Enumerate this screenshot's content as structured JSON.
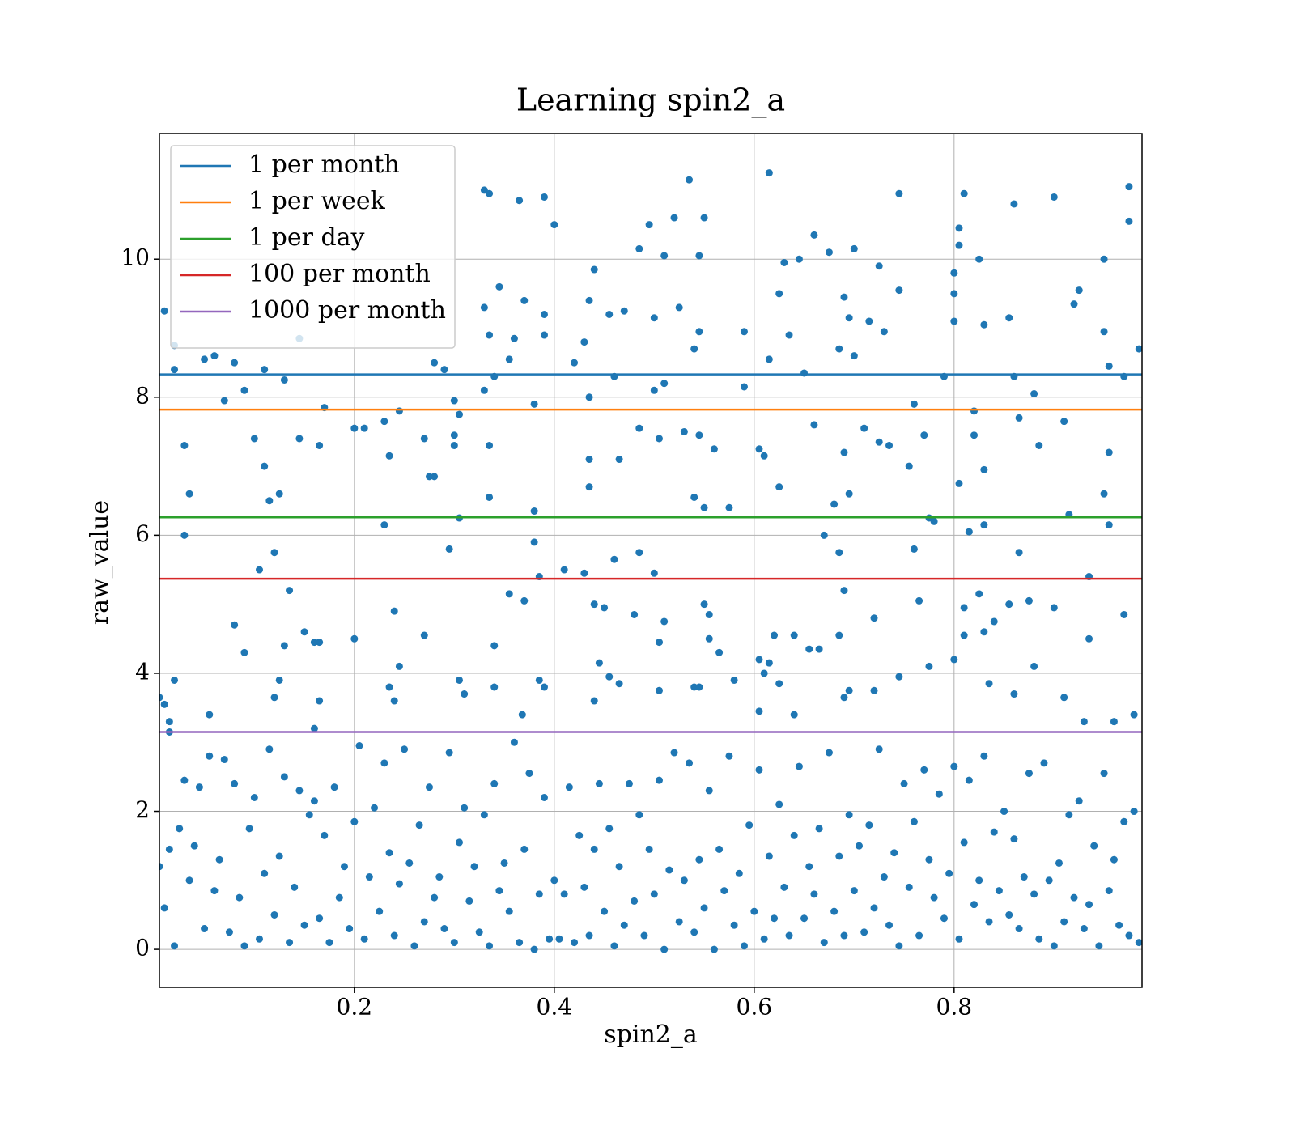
{
  "chart_data": {
    "type": "scatter",
    "title": "Learning spin2_a",
    "xlabel": "spin2_a",
    "ylabel": "raw_value",
    "color": "#1f77b4",
    "xlim": [
      0.005,
      0.988
    ],
    "ylim": [
      -0.55,
      11.82
    ],
    "xticks": [
      0.2,
      0.4,
      0.6,
      0.8
    ],
    "yticks": [
      0,
      2,
      4,
      6,
      8,
      10
    ],
    "grid": true,
    "legend": "upper left",
    "hlines": [
      {
        "name": "1 per month",
        "color": "#1f77b4",
        "value": 8.33
      },
      {
        "name": "1 per week",
        "color": "#ff7f0e",
        "value": 7.82
      },
      {
        "name": "1 per day",
        "color": "#2ca02c",
        "value": 6.26
      },
      {
        "name": "100 per month",
        "color": "#d62728",
        "value": 5.37
      },
      {
        "name": "1000 per month",
        "color": "#9467bd",
        "value": 3.15
      }
    ],
    "x": [
      0.01,
      0.02,
      0.03,
      0.035,
      0.03,
      0.07,
      0.09,
      0.1,
      0.11,
      0.115,
      0.12,
      0.105,
      0.125,
      0.13,
      0.145,
      0.145,
      0.165,
      0.17,
      0.2,
      0.21,
      0.23,
      0.235,
      0.245,
      0.23,
      0.27,
      0.275,
      0.28,
      0.3,
      0.3,
      0.295,
      0.305,
      0.33,
      0.335,
      0.345,
      0.33,
      0.335,
      0.34,
      0.335,
      0.335,
      0.365,
      0.39,
      0.4,
      0.37,
      0.39,
      0.39,
      0.38,
      0.38,
      0.38,
      0.385,
      0.42,
      0.43,
      0.435,
      0.44,
      0.435,
      0.435,
      0.435,
      0.41,
      0.43,
      0.455,
      0.47,
      0.46,
      0.465,
      0.485,
      0.495,
      0.51,
      0.52,
      0.535,
      0.545,
      0.55,
      0.5,
      0.525,
      0.54,
      0.545,
      0.5,
      0.51,
      0.485,
      0.505,
      0.53,
      0.545,
      0.56,
      0.55,
      0.54,
      0.575,
      0.485,
      0.5,
      0.46,
      0.615,
      0.59,
      0.59,
      0.63,
      0.645,
      0.66,
      0.675,
      0.625,
      0.615,
      0.635,
      0.65,
      0.69,
      0.685,
      0.7,
      0.695,
      0.7,
      0.715,
      0.725,
      0.745,
      0.745,
      0.73,
      0.605,
      0.61,
      0.625,
      0.66,
      0.69,
      0.71,
      0.725,
      0.735,
      0.755,
      0.68,
      0.695,
      0.67,
      0.685,
      0.76,
      0.77,
      0.775,
      0.78,
      0.79,
      0.8,
      0.8,
      0.805,
      0.805,
      0.81,
      0.8,
      0.825,
      0.83,
      0.82,
      0.82,
      0.83,
      0.805,
      0.815,
      0.83,
      0.86,
      0.855,
      0.86,
      0.865,
      0.88,
      0.9,
      0.92,
      0.925,
      0.91,
      0.885,
      0.915,
      0.95,
      0.95,
      0.955,
      0.975,
      0.975,
      0.97,
      0.985,
      0.955,
      0.95,
      0.955,
      0.935,
      0.865,
      0.76,
      0.05,
      0.06,
      0.08,
      0.02,
      0.11,
      0.28,
      0.29,
      0.3,
      0.305,
      0.33,
      0.36,
      0.355,
      0.08,
      0.09,
      0.135,
      0.13,
      0.15,
      0.16,
      0.165,
      0.2,
      0.24,
      0.245,
      0.235,
      0.24,
      0.27,
      0.305,
      0.31,
      0.34,
      0.34,
      0.355,
      0.37,
      0.385,
      0.39,
      0.368,
      0.44,
      0.45,
      0.445,
      0.455,
      0.465,
      0.44,
      0.48,
      0.505,
      0.51,
      0.505,
      0.55,
      0.555,
      0.555,
      0.565,
      0.54,
      0.545,
      0.58,
      0.605,
      0.61,
      0.615,
      0.62,
      0.625,
      0.64,
      0.655,
      0.665,
      0.64,
      0.605,
      0.69,
      0.685,
      0.69,
      0.695,
      0.72,
      0.72,
      0.745,
      0.765,
      0.775,
      0.8,
      0.81,
      0.81,
      0.825,
      0.83,
      0.84,
      0.835,
      0.855,
      0.86,
      0.875,
      0.88,
      0.9,
      0.91,
      0.935,
      0.93,
      0.97,
      0.96,
      0.98,
      0.01,
      0.015,
      0.02,
      0.055,
      0.12,
      0.125,
      0.165,
      0.005,
      0.015,
      0.16,
      0.005,
      0.01,
      0.015,
      0.02,
      0.025,
      0.03,
      0.035,
      0.04,
      0.045,
      0.05,
      0.055,
      0.06,
      0.065,
      0.07,
      0.075,
      0.08,
      0.085,
      0.09,
      0.095,
      0.1,
      0.105,
      0.11,
      0.115,
      0.12,
      0.125,
      0.13,
      0.135,
      0.14,
      0.145,
      0.15,
      0.155,
      0.16,
      0.165,
      0.17,
      0.175,
      0.18,
      0.185,
      0.19,
      0.195,
      0.2,
      0.205,
      0.21,
      0.215,
      0.22,
      0.225,
      0.23,
      0.235,
      0.24,
      0.245,
      0.25,
      0.255,
      0.26,
      0.265,
      0.27,
      0.275,
      0.28,
      0.285,
      0.29,
      0.295,
      0.3,
      0.305,
      0.31,
      0.315,
      0.32,
      0.325,
      0.33,
      0.335,
      0.34,
      0.345,
      0.35,
      0.355,
      0.36,
      0.365,
      0.37,
      0.375,
      0.38,
      0.385,
      0.39,
      0.395,
      0.4,
      0.405,
      0.41,
      0.415,
      0.42,
      0.425,
      0.43,
      0.435,
      0.44,
      0.445,
      0.45,
      0.455,
      0.46,
      0.465,
      0.47,
      0.475,
      0.48,
      0.485,
      0.49,
      0.495,
      0.5,
      0.505,
      0.51,
      0.515,
      0.52,
      0.525,
      0.53,
      0.535,
      0.54,
      0.545,
      0.55,
      0.555,
      0.56,
      0.565,
      0.57,
      0.575,
      0.58,
      0.585,
      0.59,
      0.595,
      0.6,
      0.605,
      0.61,
      0.615,
      0.62,
      0.625,
      0.63,
      0.635,
      0.64,
      0.645,
      0.65,
      0.655,
      0.66,
      0.665,
      0.67,
      0.675,
      0.68,
      0.685,
      0.69,
      0.695,
      0.7,
      0.705,
      0.71,
      0.715,
      0.72,
      0.725,
      0.73,
      0.735,
      0.74,
      0.745,
      0.75,
      0.755,
      0.76,
      0.765,
      0.77,
      0.775,
      0.78,
      0.785,
      0.79,
      0.795,
      0.8,
      0.805,
      0.81,
      0.815,
      0.82,
      0.825,
      0.83,
      0.835,
      0.84,
      0.845,
      0.85,
      0.855,
      0.86,
      0.865,
      0.87,
      0.875,
      0.88,
      0.885,
      0.89,
      0.895,
      0.9,
      0.905,
      0.91,
      0.915,
      0.92,
      0.925,
      0.93,
      0.935,
      0.94,
      0.945,
      0.95,
      0.955,
      0.96,
      0.965,
      0.97,
      0.975,
      0.98,
      0.985
    ],
    "values": [
      9.25,
      8.75,
      7.3,
      6.6,
      6.0,
      7.95,
      8.1,
      7.4,
      7.0,
      6.5,
      5.75,
      5.5,
      6.6,
      8.25,
      8.85,
      7.4,
      7.3,
      7.85,
      7.55,
      7.55,
      7.65,
      7.15,
      7.8,
      6.15,
      7.4,
      6.85,
      6.85,
      7.45,
      7.3,
      5.8,
      6.25,
      11.0,
      10.95,
      9.6,
      9.3,
      8.9,
      8.3,
      7.3,
      6.55,
      10.85,
      10.9,
      10.5,
      9.4,
      9.2,
      8.9,
      7.9,
      6.35,
      5.9,
      5.4,
      8.5,
      8.8,
      9.4,
      9.85,
      8.0,
      7.1,
      6.7,
      5.5,
      5.45,
      9.2,
      9.25,
      8.3,
      7.1,
      10.15,
      10.5,
      10.05,
      10.6,
      11.15,
      10.05,
      10.6,
      9.15,
      9.3,
      8.7,
      8.95,
      8.1,
      8.2,
      7.55,
      7.4,
      7.5,
      7.45,
      7.25,
      6.4,
      6.55,
      6.4,
      5.75,
      5.45,
      5.65,
      11.25,
      8.95,
      8.15,
      9.95,
      10.0,
      10.35,
      10.1,
      9.5,
      8.55,
      8.9,
      8.35,
      9.45,
      8.7,
      10.15,
      9.15,
      8.6,
      9.1,
      9.9,
      10.95,
      9.55,
      8.95,
      7.25,
      7.15,
      6.7,
      7.6,
      7.2,
      7.55,
      7.35,
      7.3,
      7.0,
      6.45,
      6.6,
      6.0,
      5.75,
      7.9,
      7.45,
      6.25,
      6.2,
      8.3,
      9.1,
      9.8,
      10.2,
      10.45,
      10.95,
      9.5,
      10.0,
      9.05,
      7.8,
      7.45,
      6.95,
      6.75,
      6.05,
      6.15,
      10.8,
      9.15,
      8.3,
      7.7,
      8.05,
      10.9,
      9.35,
      9.55,
      7.65,
      7.3,
      6.3,
      10.0,
      8.95,
      8.45,
      11.05,
      10.55,
      8.3,
      8.7,
      7.2,
      6.6,
      6.15,
      5.4,
      5.75,
      5.8,
      8.55,
      8.6,
      8.5,
      8.4,
      8.4,
      8.5,
      8.4,
      7.95,
      7.75,
      8.1,
      8.85,
      8.55,
      4.7,
      4.3,
      5.2,
      4.4,
      4.6,
      4.45,
      4.45,
      4.5,
      4.9,
      4.1,
      3.8,
      3.6,
      4.55,
      3.9,
      3.7,
      4.4,
      3.8,
      5.15,
      5.05,
      3.9,
      3.8,
      3.4,
      5.0,
      4.95,
      4.15,
      3.95,
      3.85,
      3.6,
      4.85,
      4.45,
      4.75,
      3.75,
      5.0,
      4.85,
      4.5,
      4.3,
      3.8,
      3.8,
      3.9,
      4.2,
      4.0,
      4.15,
      4.55,
      3.85,
      4.55,
      4.35,
      4.35,
      3.4,
      3.45,
      5.2,
      4.55,
      3.65,
      3.75,
      4.8,
      3.75,
      3.95,
      5.05,
      4.1,
      4.2,
      4.95,
      4.55,
      5.15,
      4.6,
      4.75,
      3.85,
      5.0,
      3.7,
      5.05,
      4.1,
      4.95,
      3.65,
      4.5,
      3.3,
      4.85,
      3.3,
      3.4,
      3.55,
      3.3,
      3.9,
      3.4,
      3.65,
      3.9,
      3.6,
      3.65,
      3.15,
      3.2,
      1.2,
      0.6,
      1.45,
      0.05,
      1.75,
      2.45,
      1.0,
      1.5,
      2.35,
      0.3,
      2.8,
      0.85,
      1.3,
      2.75,
      0.25,
      2.4,
      0.75,
      0.05,
      1.75,
      2.2,
      0.15,
      1.1,
      2.9,
      0.5,
      1.35,
      2.5,
      0.1,
      0.9,
      2.3,
      0.35,
      1.95,
      2.15,
      0.45,
      1.65,
      0.1,
      2.35,
      0.75,
      1.2,
      0.3,
      1.85,
      2.95,
      0.15,
      1.05,
      2.05,
      0.55,
      2.7,
      1.4,
      0.2,
      0.95,
      2.9,
      1.25,
      0.05,
      1.8,
      0.4,
      2.35,
      0.75,
      1.05,
      0.3,
      2.85,
      0.1,
      1.55,
      2.05,
      0.7,
      1.2,
      0.25,
      1.95,
      0.05,
      2.4,
      0.85,
      1.25,
      0.55,
      3.0,
      0.1,
      1.45,
      2.55,
      0.0,
      0.8,
      2.2,
      0.15,
      1.0,
      0.15,
      0.8,
      2.35,
      0.1,
      1.65,
      0.9,
      0.2,
      1.45,
      2.4,
      0.55,
      1.75,
      0.05,
      1.2,
      0.35,
      2.4,
      0.7,
      1.95,
      0.2,
      1.45,
      0.8,
      2.45,
      0.0,
      1.15,
      2.85,
      0.4,
      1.0,
      2.7,
      0.25,
      1.3,
      0.6,
      2.3,
      0.0,
      1.45,
      0.85,
      2.8,
      0.35,
      1.1,
      0.05,
      1.8,
      0.55,
      2.6,
      0.15,
      1.35,
      0.45,
      2.1,
      0.9,
      0.2,
      1.65,
      2.65,
      0.45,
      1.2,
      0.8,
      1.75,
      0.1,
      2.85,
      0.55,
      1.35,
      0.2,
      1.95,
      0.85,
      1.5,
      0.25,
      1.8,
      0.6,
      2.9,
      1.05,
      0.35,
      1.4,
      0.05,
      2.4,
      0.9,
      1.85,
      0.2,
      2.6,
      1.3,
      0.75,
      2.25,
      0.45,
      1.1,
      2.65,
      0.15,
      1.55,
      2.45,
      0.65,
      1.0,
      2.8,
      0.4,
      1.7,
      0.85,
      2.0,
      0.5,
      1.6,
      0.3,
      1.05,
      2.55,
      0.8,
      0.15,
      2.7,
      1.0,
      0.05,
      1.25,
      0.4,
      1.95,
      0.75,
      2.15,
      0.3,
      0.65,
      1.5,
      0.05,
      2.55,
      0.85,
      1.3,
      0.35,
      1.85,
      0.2,
      2.0,
      0.1
    ]
  }
}
